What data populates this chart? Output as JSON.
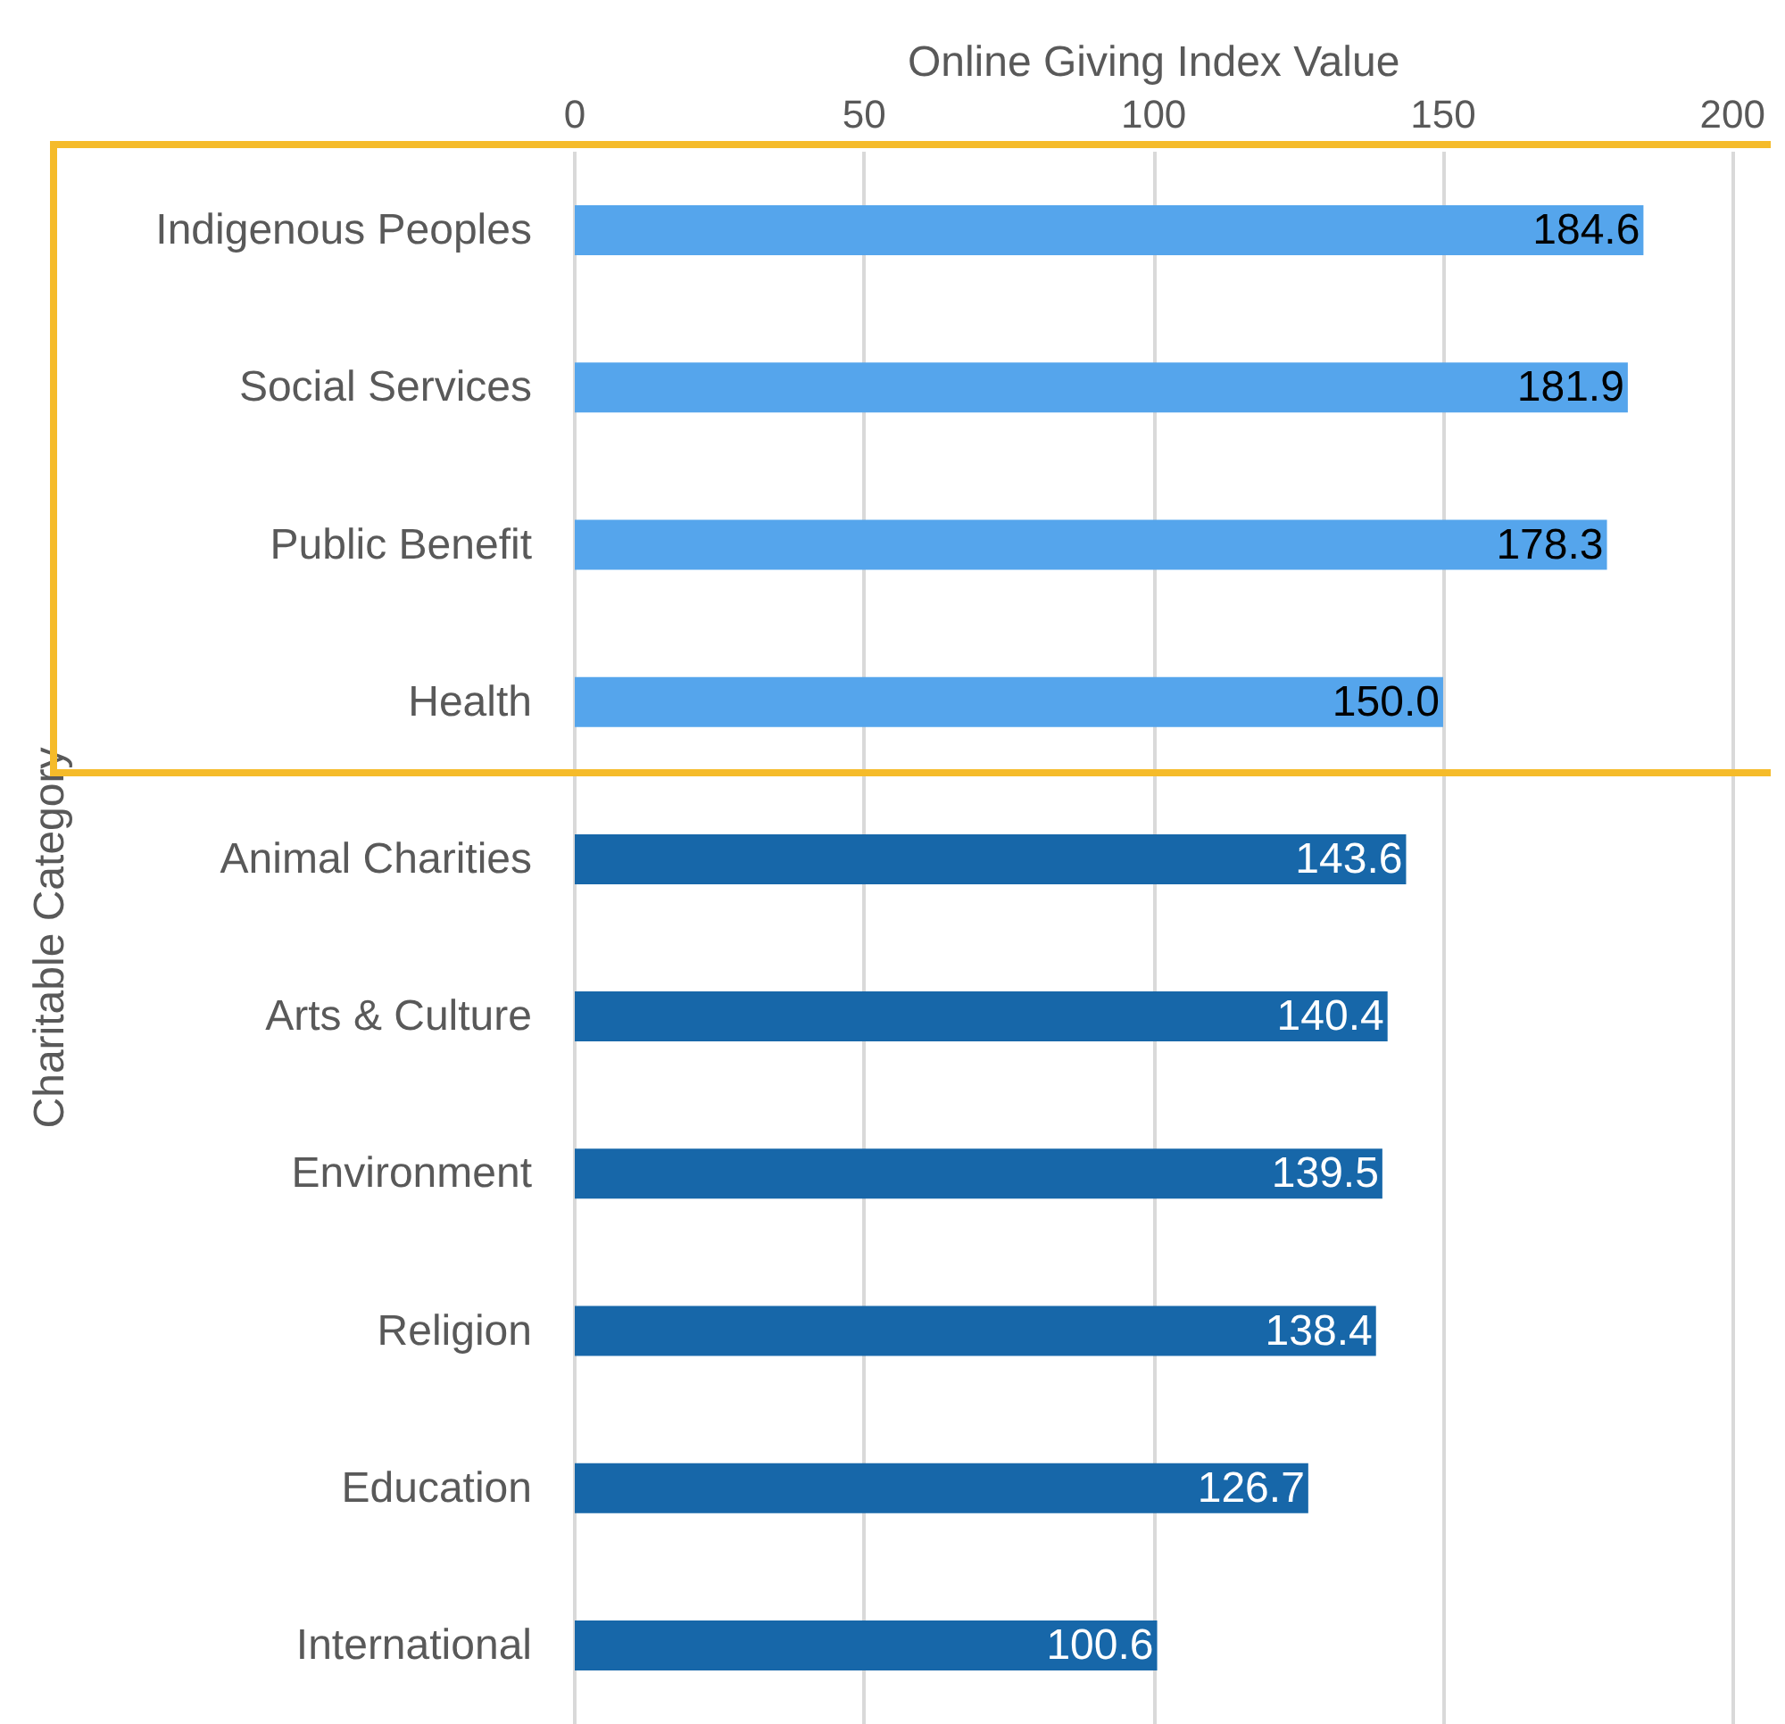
{
  "chart_data": {
    "type": "bar",
    "orientation": "horizontal",
    "xlabel": "Online Giving Index Value",
    "ylabel": "Charitable Category",
    "categories": [
      "Indigenous Peoples",
      "Social Services",
      "Public Benefit",
      "Health",
      "Animal Charities",
      "Arts & Culture",
      "Environment",
      "Religion",
      "Education",
      "International"
    ],
    "values": [
      184.6,
      181.9,
      178.3,
      150.0,
      143.6,
      140.4,
      139.5,
      138.4,
      126.7,
      100.6
    ],
    "colors": [
      "#55a5ec",
      "#55a5ec",
      "#55a5ec",
      "#55a5ec",
      "#1767a9",
      "#1767a9",
      "#1767a9",
      "#1767a9",
      "#1767a9",
      "#1767a9"
    ],
    "value_labels": [
      "184.6",
      "181.9",
      "178.3",
      "150.0",
      "143.6",
      "140.4",
      "139.5",
      "138.4",
      "126.7",
      "100.6"
    ],
    "xlim": [
      0,
      200
    ],
    "xticks": [
      0,
      50,
      100,
      150,
      200
    ],
    "grid": "x"
  }
}
